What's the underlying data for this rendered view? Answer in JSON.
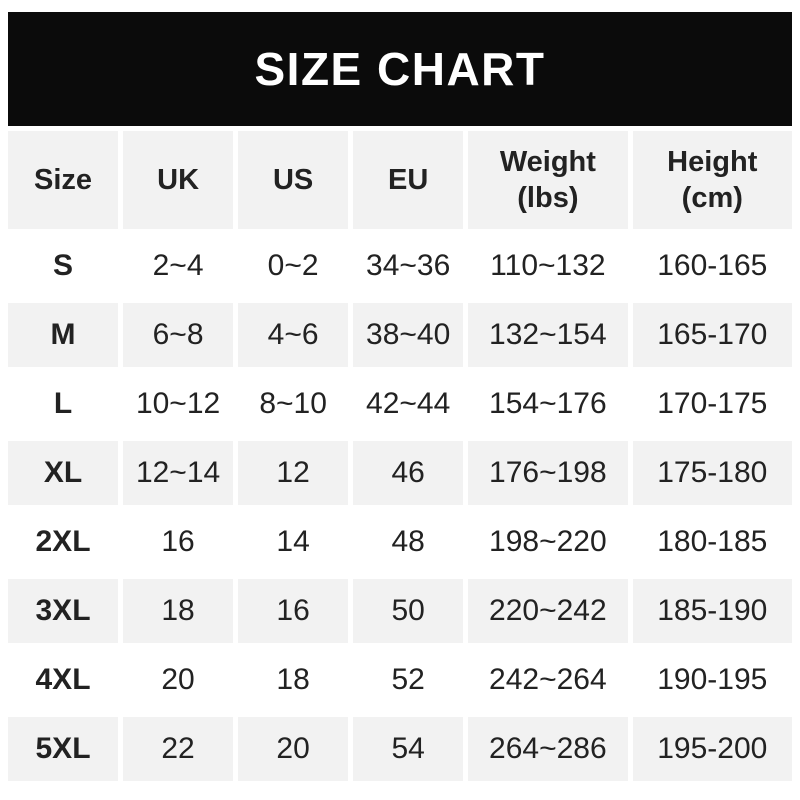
{
  "title": "SIZE CHART",
  "colors": {
    "banner_bg": "#0b0b0b",
    "banner_text": "#ffffff",
    "row_stripe": "#f2f2f2",
    "text": "#222222"
  },
  "chart_data": {
    "type": "table",
    "title": "SIZE CHART",
    "columns": [
      "Size",
      "UK",
      "US",
      "EU",
      "Weight\n(lbs)",
      "Height\n(cm)"
    ],
    "rows": [
      [
        "S",
        "2~4",
        "0~2",
        "34~36",
        "110~132",
        "160-165"
      ],
      [
        "M",
        "6~8",
        "4~6",
        "38~40",
        "132~154",
        "165-170"
      ],
      [
        "L",
        "10~12",
        "8~10",
        "42~44",
        "154~176",
        "170-175"
      ],
      [
        "XL",
        "12~14",
        "12",
        "46",
        "176~198",
        "175-180"
      ],
      [
        "2XL",
        "16",
        "14",
        "48",
        "198~220",
        "180-185"
      ],
      [
        "3XL",
        "18",
        "16",
        "50",
        "220~242",
        "185-190"
      ],
      [
        "4XL",
        "20",
        "18",
        "52",
        "242~264",
        "190-195"
      ],
      [
        "5XL",
        "22",
        "20",
        "54",
        "264~286",
        "195-200"
      ]
    ]
  }
}
